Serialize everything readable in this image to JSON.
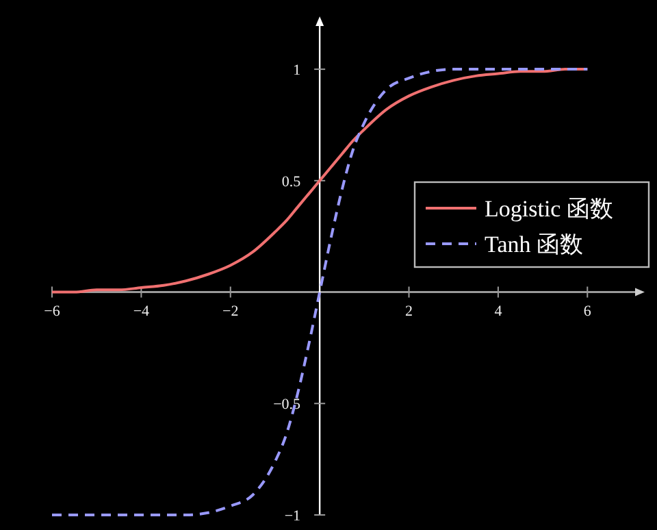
{
  "chart_data": {
    "type": "line",
    "x": [
      -6,
      -5.5,
      -5,
      -4.5,
      -4,
      -3.5,
      -3,
      -2.5,
      -2,
      -1.5,
      -1,
      -0.75,
      -0.5,
      -0.25,
      0,
      0.25,
      0.5,
      0.75,
      1,
      1.5,
      2,
      2.5,
      3,
      3.5,
      4,
      4.5,
      5,
      5.5,
      6
    ],
    "series": [
      {
        "name": "Logistic 函数",
        "color": "#f07070",
        "line_style": "solid",
        "values": [
          0,
          0,
          0.01,
          0.01,
          0.02,
          0.03,
          0.05,
          0.08,
          0.12,
          0.18,
          0.27,
          0.32,
          0.38,
          0.44,
          0.5,
          0.56,
          0.62,
          0.68,
          0.73,
          0.82,
          0.88,
          0.92,
          0.95,
          0.97,
          0.98,
          0.99,
          0.99,
          1,
          1
        ]
      },
      {
        "name": "Tanh 函数",
        "color": "#9999ff",
        "line_style": "dashed",
        "values": [
          -1,
          -1,
          -1,
          -1,
          -1,
          -1,
          -1,
          -0.99,
          -0.96,
          -0.91,
          -0.76,
          -0.64,
          -0.46,
          -0.24,
          0,
          0.24,
          0.46,
          0.64,
          0.76,
          0.91,
          0.96,
          0.99,
          1,
          1,
          1,
          1,
          1,
          1,
          1
        ]
      }
    ],
    "xlim": [
      -6,
      7.1
    ],
    "ylim": [
      -1,
      1.2
    ],
    "xticks": [
      {
        "value": -6,
        "label": "−6"
      },
      {
        "value": -4,
        "label": "−4"
      },
      {
        "value": -2,
        "label": "−2"
      },
      2,
      4,
      6
    ],
    "yticks": [
      {
        "value": -1,
        "label": "−1"
      },
      {
        "value": -0.5,
        "label": "−0.5"
      },
      0.5,
      1
    ],
    "legend": "right",
    "grid": false
  }
}
